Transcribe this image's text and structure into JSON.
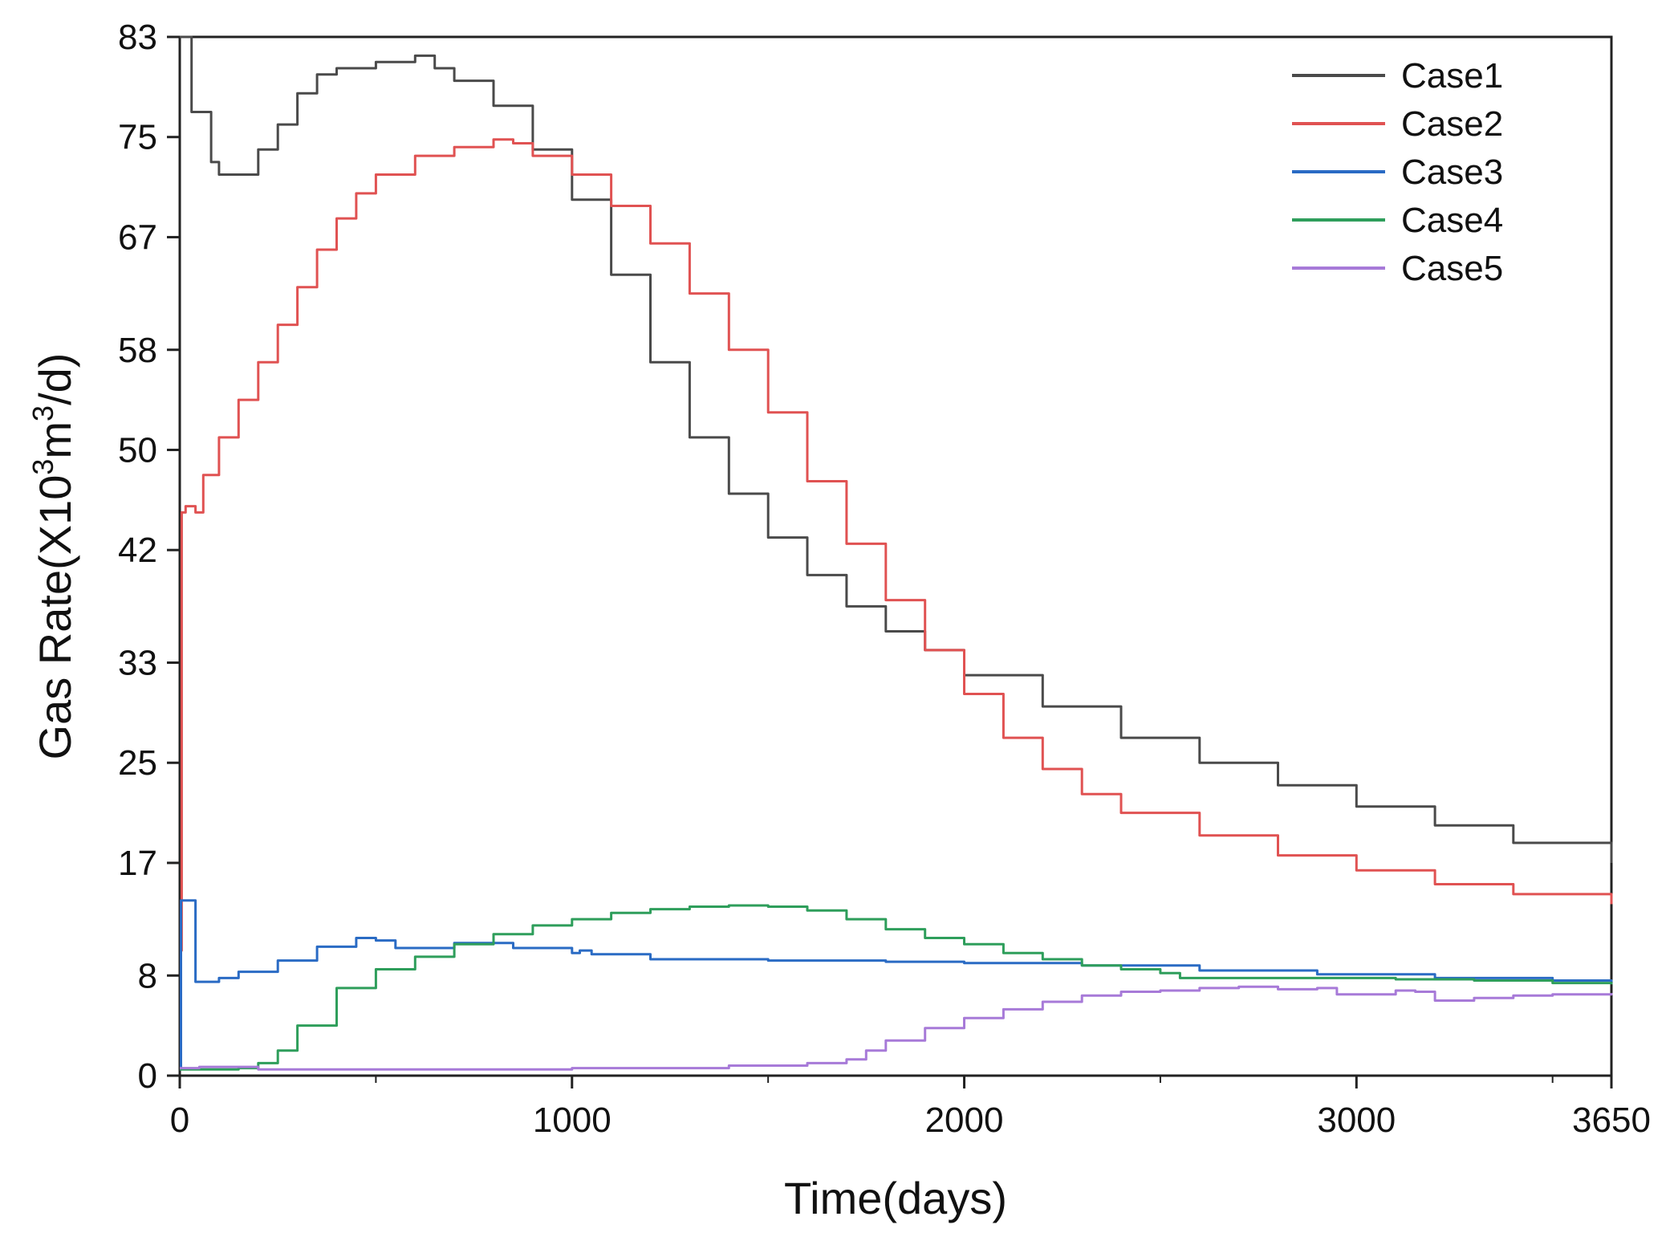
{
  "chart_data": {
    "type": "line",
    "title": "",
    "xlabel": "Time(days)",
    "ylabel_prefix": "Gas Rate(X10",
    "ylabel_sup1": "3",
    "ylabel_mid": "m",
    "ylabel_sup2": "3",
    "ylabel_suffix": "/d)",
    "xlim": [
      0,
      3650
    ],
    "ylim": [
      0,
      83
    ],
    "xticks": [
      0,
      1000,
      2000,
      3000,
      3650
    ],
    "xtick_labels": [
      "0",
      "1000",
      "2000",
      "3000",
      "3650"
    ],
    "xminor": [
      500,
      1500,
      2500,
      3500
    ],
    "yticks": [
      0,
      8,
      17,
      25,
      33,
      42,
      50,
      58,
      67,
      75,
      83
    ],
    "ytick_labels": [
      "0",
      "8",
      "17",
      "25",
      "33",
      "42",
      "50",
      "58",
      "67",
      "75",
      "83"
    ],
    "legend_position": "top-right",
    "grid": false,
    "series": [
      {
        "name": "Case1",
        "color": "#4a4a4a",
        "x": [
          0,
          10,
          20,
          30,
          60,
          80,
          100,
          150,
          200,
          250,
          300,
          350,
          400,
          500,
          600,
          650,
          700,
          800,
          900,
          1000,
          1100,
          1200,
          1300,
          1400,
          1500,
          1600,
          1700,
          1800,
          1900,
          2000,
          2200,
          2400,
          2600,
          2800,
          3000,
          3200,
          3400,
          3650
        ],
        "y": [
          83,
          83,
          83,
          77,
          77,
          73,
          72,
          72,
          74,
          76,
          78.5,
          80,
          80.5,
          81,
          81.5,
          80.5,
          79.5,
          77.5,
          74,
          70,
          64,
          57,
          51,
          46.5,
          43,
          40,
          37.5,
          35.5,
          34,
          32,
          29.5,
          27,
          25,
          23.2,
          21.5,
          20,
          18.6,
          17
        ]
      },
      {
        "name": "Case2",
        "color": "#e05252",
        "x": [
          0,
          5,
          15,
          40,
          60,
          100,
          150,
          200,
          250,
          300,
          350,
          400,
          450,
          500,
          600,
          700,
          800,
          850,
          900,
          1000,
          1100,
          1200,
          1300,
          1400,
          1500,
          1600,
          1700,
          1800,
          1900,
          2000,
          2100,
          2200,
          2300,
          2400,
          2600,
          2800,
          3000,
          3200,
          3400,
          3650
        ],
        "y": [
          10,
          45,
          45.5,
          45,
          48,
          51,
          54,
          57,
          60,
          63,
          66,
          68.5,
          70.5,
          72,
          73.5,
          74.2,
          74.8,
          74.5,
          73.5,
          72,
          69.5,
          66.5,
          62.5,
          58,
          53,
          47.5,
          42.5,
          38,
          34,
          30.5,
          27,
          24.5,
          22.5,
          21,
          19.2,
          17.6,
          16.4,
          15.3,
          14.5,
          13.7
        ]
      },
      {
        "name": "Case3",
        "color": "#2a6bc4",
        "x": [
          0,
          3,
          10,
          30,
          40,
          100,
          150,
          250,
          350,
          450,
          500,
          550,
          700,
          850,
          1000,
          1020,
          1050,
          1200,
          1500,
          1800,
          2000,
          2300,
          2600,
          2900,
          3200,
          3500,
          3650
        ],
        "y": [
          0.5,
          14,
          14,
          14,
          7.5,
          7.8,
          8.3,
          9.2,
          10.3,
          11,
          10.8,
          10.2,
          10.6,
          10.2,
          9.8,
          10,
          9.7,
          9.3,
          9.2,
          9.1,
          9.0,
          8.8,
          8.4,
          8.1,
          7.8,
          7.6,
          7.5
        ]
      },
      {
        "name": "Case4",
        "color": "#2e9e5b",
        "x": [
          0,
          100,
          150,
          200,
          250,
          300,
          400,
          500,
          600,
          700,
          800,
          900,
          1000,
          1100,
          1200,
          1300,
          1400,
          1500,
          1600,
          1700,
          1800,
          1900,
          2000,
          2100,
          2200,
          2300,
          2400,
          2500,
          2550,
          2700,
          2900,
          3100,
          3300,
          3500,
          3650
        ],
        "y": [
          0.5,
          0.5,
          0.6,
          1,
          2,
          4,
          7,
          8.5,
          9.5,
          10.5,
          11.3,
          12,
          12.5,
          13,
          13.3,
          13.5,
          13.6,
          13.5,
          13.2,
          12.5,
          11.7,
          11,
          10.5,
          9.8,
          9.3,
          8.8,
          8.5,
          8.2,
          7.8,
          7.8,
          7.8,
          7.7,
          7.6,
          7.4,
          7.3
        ]
      },
      {
        "name": "Case5",
        "color": "#a77ad8",
        "x": [
          0,
          50,
          200,
          500,
          1000,
          1400,
          1600,
          1700,
          1750,
          1800,
          1900,
          2000,
          2100,
          2200,
          2300,
          2400,
          2500,
          2600,
          2700,
          2800,
          2900,
          2950,
          3000,
          3100,
          3150,
          3200,
          3300,
          3400,
          3500,
          3650
        ],
        "y": [
          0.6,
          0.7,
          0.5,
          0.5,
          0.6,
          0.8,
          1.0,
          1.3,
          2.0,
          2.8,
          3.8,
          4.6,
          5.3,
          5.9,
          6.4,
          6.7,
          6.8,
          7.0,
          7.1,
          6.9,
          7.0,
          6.5,
          6.5,
          6.8,
          6.7,
          6.0,
          6.2,
          6.4,
          6.5,
          6.6
        ]
      }
    ]
  }
}
